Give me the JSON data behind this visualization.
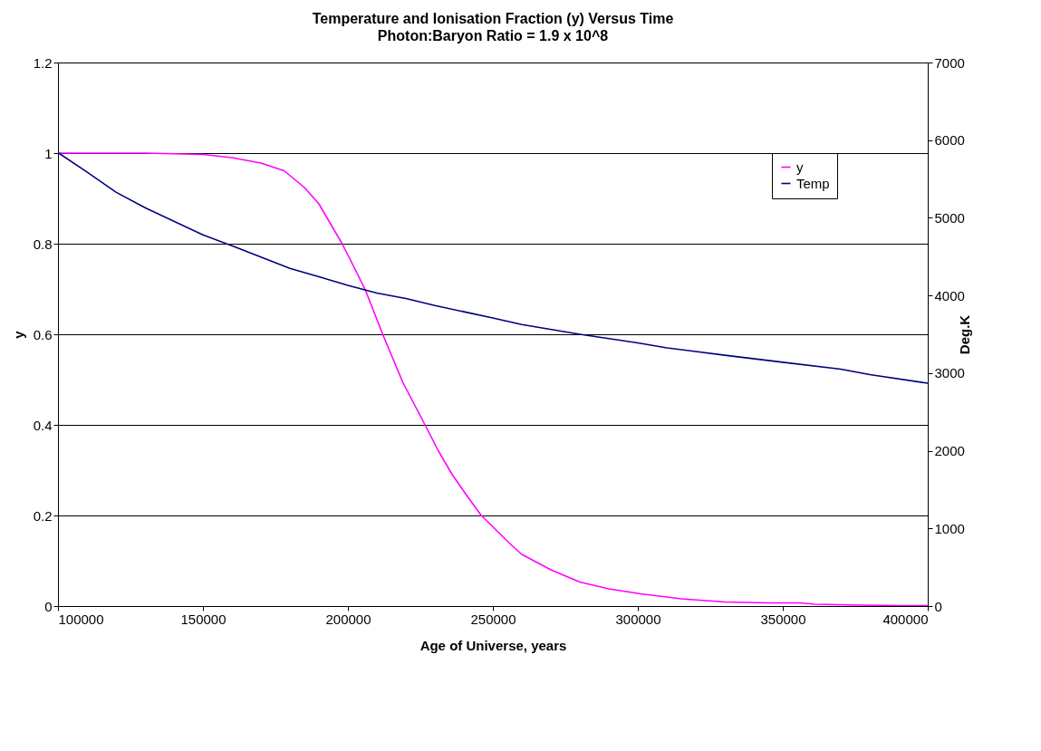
{
  "chart_data": {
    "type": "line",
    "title": "Temperature and Ionisation Fraction (y) Versus Time",
    "subtitle": "Photon:Baryon Ratio = 1.9 x 10^8",
    "xlabel": "Age of Universe, years",
    "ylabel": "y",
    "y2label": "Deg.K",
    "xlim": [
      100000,
      400000
    ],
    "xticks": [
      100000,
      150000,
      200000,
      250000,
      300000,
      350000,
      400000
    ],
    "ylim": [
      0,
      1.2
    ],
    "yticks": [
      0,
      0.2,
      0.4,
      0.6,
      0.8,
      1,
      1.2
    ],
    "y2lim": [
      0,
      7000
    ],
    "y2ticks": [
      0,
      1000,
      2000,
      3000,
      4000,
      5000,
      6000,
      7000
    ],
    "grid": "y",
    "legend": "top right",
    "series": [
      {
        "name": "y",
        "color": "#ff00ff",
        "x": [
          100000,
          130000,
          150000,
          160000,
          170000,
          178000,
          185000,
          190000,
          198000,
          203000,
          206000,
          212000,
          219000,
          226600,
          231000,
          236000,
          241000,
          246000,
          256000,
          260000,
          270000,
          280000,
          290000,
          301000,
          315000,
          330000,
          345000,
          356000,
          361000,
          377000,
          390000,
          400000
        ],
        "values": [
          1,
          1,
          0.997,
          0.99,
          0.978,
          0.961,
          0.924,
          0.888,
          0.8,
          0.737,
          0.698,
          0.6,
          0.493,
          0.4,
          0.345,
          0.29,
          0.244,
          0.2,
          0.137,
          0.114,
          0.08,
          0.053,
          0.038,
          0.027,
          0.016,
          0.009,
          0.007,
          0.007,
          0.004,
          0.002,
          0.001,
          0.001
        ]
      },
      {
        "name": "Temp",
        "color": "#000080",
        "axis": "y2",
        "x": [
          100000,
          110000,
          120000,
          130000,
          150000,
          160000,
          180000,
          190000,
          200000,
          210000,
          220000,
          230000,
          240000,
          250000,
          260000,
          280000,
          300000,
          310000,
          330000,
          350000,
          370000,
          380000,
          400000
        ],
        "values": [
          5840,
          5590,
          5330,
          5130,
          4780,
          4640,
          4350,
          4240,
          4130,
          4030,
          3960,
          3870,
          3790,
          3710,
          3625,
          3500,
          3390,
          3325,
          3230,
          3140,
          3050,
          2980,
          2870
        ]
      }
    ]
  }
}
